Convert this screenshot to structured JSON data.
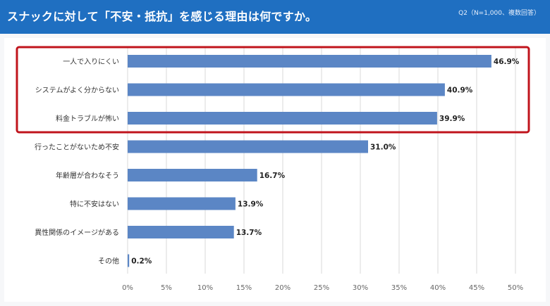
{
  "header": {
    "title": "スナックに対して「不安・抵抗」を感じる理由は何ですか。",
    "note": "Q2（N=1,000、複数回答）"
  },
  "colors": {
    "header_bg": "#1f6fc1",
    "bar": "#5b86c5",
    "highlight_frame": "#c0141c",
    "grid": "#d9d9d9"
  },
  "chart_data": {
    "type": "bar",
    "orientation": "horizontal",
    "categories": [
      "一人で入りにくい",
      "システムがよく分からない",
      "料金トラブルが怖い",
      "行ったことがないため不安",
      "年齢層が合わなそう",
      "特に不安はない",
      "異性関係のイメージがある",
      "その他"
    ],
    "values": [
      46.9,
      40.9,
      39.9,
      31.0,
      16.7,
      13.9,
      13.7,
      0.2
    ],
    "value_labels": [
      "46.9%",
      "40.9%",
      "39.9%",
      "31.0%",
      "16.7%",
      "13.9%",
      "13.7%",
      "0.2%"
    ],
    "xlim": [
      0,
      50
    ],
    "xticks": [
      "0%",
      "5%",
      "10%",
      "15%",
      "20%",
      "25%",
      "30%",
      "35%",
      "40%",
      "45%",
      "50%"
    ],
    "grid": true,
    "highlighted_categories": [
      0,
      1,
      2
    ]
  }
}
